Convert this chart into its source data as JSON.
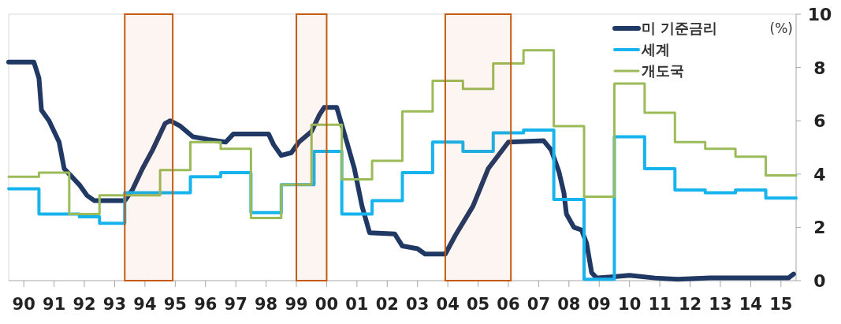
{
  "chart_data": {
    "type": "line",
    "ylabel": "(%)",
    "legend": "top right",
    "xlim": [
      "1990-01",
      "2016-01"
    ],
    "ylim": [
      0,
      10
    ],
    "yticks": [
      0,
      2,
      4,
      6,
      8,
      10
    ],
    "xticks": [
      {
        "value": "1990-07",
        "label": "90"
      },
      {
        "value": "1991-07",
        "label": "91"
      },
      {
        "value": "1992-07",
        "label": "92"
      },
      {
        "value": "1993-07",
        "label": "93"
      },
      {
        "value": "1994-07",
        "label": "94"
      },
      {
        "value": "1995-07",
        "label": "95"
      },
      {
        "value": "1996-07",
        "label": "96"
      },
      {
        "value": "1997-07",
        "label": "97"
      },
      {
        "value": "1998-07",
        "label": "98"
      },
      {
        "value": "1999-07",
        "label": "99"
      },
      {
        "value": "2000-07",
        "label": "00"
      },
      {
        "value": "2001-07",
        "label": "01"
      },
      {
        "value": "2002-07",
        "label": "02"
      },
      {
        "value": "2003-07",
        "label": "03"
      },
      {
        "value": "2004-07",
        "label": "04"
      },
      {
        "value": "2005-07",
        "label": "05"
      },
      {
        "value": "2006-07",
        "label": "06"
      },
      {
        "value": "2007-07",
        "label": "07"
      },
      {
        "value": "2008-07",
        "label": "08"
      },
      {
        "value": "2009-07",
        "label": "09"
      },
      {
        "value": "2010-07",
        "label": "10"
      },
      {
        "value": "2011-07",
        "label": "11"
      },
      {
        "value": "2012-07",
        "label": "12"
      },
      {
        "value": "2013-07",
        "label": "13"
      },
      {
        "value": "2014-07",
        "label": "14"
      },
      {
        "value": "2015-07",
        "label": "15"
      }
    ],
    "bands": [
      {
        "axis": "x",
        "from": "1993-11",
        "to": "1995-06",
        "color": "#c55a11"
      },
      {
        "axis": "x",
        "from": "1999-07",
        "to": "2000-07",
        "color": "#c55a11"
      },
      {
        "axis": "x",
        "from": "2004-06",
        "to": "2006-08",
        "color": "#c55a11"
      }
    ],
    "series": [
      {
        "name": "미 기준금리",
        "color": "#1f3864",
        "x": [
          "1990-01",
          "1990-08",
          "1990-11",
          "1991-01",
          "1991-02",
          "1991-05",
          "1991-06",
          "1991-09",
          "1991-11",
          "1992-02",
          "1992-05",
          "1992-08",
          "1992-11",
          "1993-11",
          "1994-02",
          "1994-06",
          "1994-10",
          "1995-03",
          "1995-05",
          "1995-09",
          "1996-02",
          "1996-08",
          "1997-03",
          "1997-06",
          "1998-08",
          "1998-10",
          "1999-01",
          "1999-05",
          "1999-08",
          "2000-01",
          "2000-04",
          "2000-06",
          "2000-11",
          "2001-03",
          "2001-06",
          "2001-09",
          "2001-12",
          "2002-10",
          "2003-01",
          "2003-07",
          "2003-10",
          "2004-06",
          "2004-10",
          "2005-05",
          "2005-11",
          "2006-07",
          "2007-09",
          "2007-12",
          "2008-03",
          "2008-05",
          "2008-06",
          "2008-09",
          "2008-12",
          "2009-02",
          "2009-04",
          "2009-06",
          "2010-01",
          "2010-07",
          "2011-05",
          "2012-02",
          "2013-03",
          "2015-10",
          "2015-12"
        ],
        "values": [
          8.2,
          8.2,
          8.2,
          7.6,
          6.4,
          6.0,
          5.8,
          5.2,
          4.2,
          3.9,
          3.6,
          3.2,
          3.0,
          3.0,
          3.4,
          4.2,
          4.9,
          5.9,
          6.0,
          5.8,
          5.4,
          5.3,
          5.2,
          5.5,
          5.5,
          5.1,
          4.7,
          4.8,
          5.2,
          5.6,
          6.2,
          6.5,
          6.5,
          5.2,
          4.2,
          2.8,
          1.8,
          1.75,
          1.3,
          1.2,
          1.0,
          1.0,
          1.7,
          2.8,
          4.2,
          5.2,
          5.25,
          4.9,
          4.1,
          3.3,
          2.5,
          2.0,
          1.9,
          1.4,
          0.3,
          0.1,
          0.15,
          0.2,
          0.1,
          0.05,
          0.1,
          0.1,
          0.25
        ]
      },
      {
        "name": "세계",
        "type": "step",
        "color": "#17b3ec",
        "x": [
          "1990-01",
          "1991-01",
          "1992-05",
          "1993-01",
          "1993-11",
          "1996-01",
          "1997-01",
          "1998-01",
          "1999-01",
          "2000-02",
          "2001-01",
          "2002-01",
          "2003-01",
          "2004-01",
          "2005-01",
          "2006-01",
          "2007-01",
          "2008-01",
          "2009-01",
          "2010-01",
          "2011-01",
          "2012-01",
          "2013-01",
          "2014-01",
          "2015-01",
          "2016-01"
        ],
        "values": [
          3.45,
          2.5,
          2.4,
          2.15,
          3.3,
          3.9,
          4.05,
          2.55,
          3.6,
          4.85,
          2.5,
          3.0,
          4.05,
          5.2,
          4.85,
          5.55,
          5.65,
          3.05,
          0.05,
          5.4,
          4.2,
          3.4,
          3.3,
          3.4,
          3.1,
          3.1
        ]
      },
      {
        "name": "개도국",
        "type": "step",
        "color": "#9bbb59",
        "x": [
          "1990-01",
          "1991-01",
          "1992-01",
          "1993-01",
          "1995-01",
          "1996-01",
          "1997-01",
          "1998-01",
          "1999-01",
          "2000-01",
          "2001-01",
          "2002-01",
          "2003-01",
          "2004-01",
          "2005-01",
          "2006-01",
          "2007-01",
          "2008-01",
          "2009-01",
          "2010-01",
          "2011-01",
          "2012-01",
          "2013-01",
          "2014-01",
          "2015-01",
          "2016-01"
        ],
        "values": [
          3.9,
          4.05,
          2.5,
          3.2,
          4.15,
          5.2,
          4.95,
          2.35,
          3.6,
          5.85,
          3.8,
          4.5,
          6.35,
          7.5,
          7.2,
          8.15,
          8.65,
          5.8,
          3.15,
          7.4,
          6.3,
          5.2,
          4.95,
          4.65,
          3.95,
          3.95
        ]
      }
    ]
  }
}
